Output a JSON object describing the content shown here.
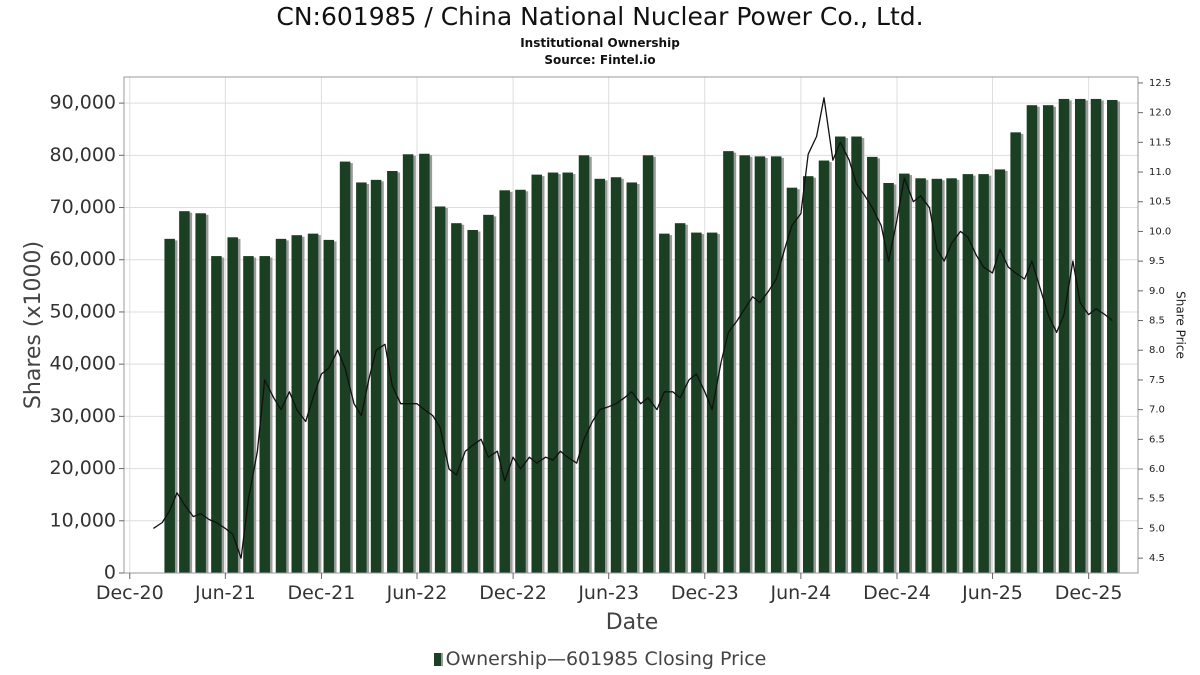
{
  "chart_data": {
    "type": "bar",
    "title": "CN:601985 / China National Nuclear Power Co., Ltd.",
    "subtitle": "Institutional Ownership",
    "source": "Source: Fintel.io",
    "xlabel": "Date",
    "ylabel": "Shares (x1000)",
    "y2label": "Share Price",
    "ylim": [
      0,
      95000
    ],
    "y2lim": [
      4.25,
      12.6
    ],
    "yticks": [
      "0",
      "10,000",
      "20,000",
      "30,000",
      "40,000",
      "50,000",
      "60,000",
      "70,000",
      "80,000",
      "90,000"
    ],
    "y2ticks": [
      "4.5",
      "5.0",
      "5.5",
      "6.0",
      "6.5",
      "7.0",
      "7.5",
      "8.0",
      "8.5",
      "9.0",
      "9.5",
      "10.0",
      "10.5",
      "11.0",
      "11.5",
      "12.0",
      "12.5"
    ],
    "xticks": [
      "Dec-20",
      "Jun-21",
      "Dec-21",
      "Jun-22",
      "Dec-22",
      "Jun-23",
      "Dec-23",
      "Jun-24",
      "Dec-24",
      "Jun-25",
      "Dec-25"
    ],
    "grid": true,
    "legend_position": "bottom",
    "series": [
      {
        "name": "Ownership",
        "kind": "bar",
        "color": "#1a3f23",
        "x": [
          "2021-02-15",
          "2021-03-15",
          "2021-04-15",
          "2021-05-15",
          "2021-06-15",
          "2021-07-15",
          "2021-08-15",
          "2021-09-15",
          "2021-10-15",
          "2021-11-15",
          "2021-12-15",
          "2022-01-15",
          "2022-02-15",
          "2022-03-15",
          "2022-04-15",
          "2022-05-15",
          "2022-06-15",
          "2022-07-15",
          "2022-08-15",
          "2022-09-15",
          "2022-10-15",
          "2022-11-15",
          "2022-12-15",
          "2023-01-15",
          "2023-02-15",
          "2023-03-15",
          "2023-04-15",
          "2023-05-15",
          "2023-06-15",
          "2023-07-15",
          "2023-08-15",
          "2023-09-15",
          "2023-10-15",
          "2023-11-15",
          "2023-12-15",
          "2024-01-15",
          "2024-02-15",
          "2024-03-15",
          "2024-04-15",
          "2024-05-15",
          "2024-06-15",
          "2024-07-15",
          "2024-08-15",
          "2024-09-15",
          "2024-10-15",
          "2024-11-15",
          "2024-12-15",
          "2025-01-15",
          "2025-02-15",
          "2025-03-15",
          "2025-04-15",
          "2025-05-15",
          "2025-06-15",
          "2025-07-15",
          "2025-08-15",
          "2025-09-15",
          "2025-10-15",
          "2025-11-15",
          "2025-12-15",
          "2026-01-15"
        ],
        "values": [
          64000,
          69300,
          68900,
          60700,
          64300,
          60700,
          60700,
          64000,
          64700,
          65000,
          63800,
          78800,
          74800,
          75300,
          77000,
          80200,
          80300,
          70200,
          67000,
          65700,
          68600,
          73300,
          73400,
          76300,
          76700,
          76700,
          80000,
          75500,
          75800,
          74800,
          80000,
          65000,
          67000,
          65200,
          65200,
          80800,
          80000,
          79800,
          79800,
          73800,
          76000,
          79000,
          83600,
          83600,
          79700,
          74700,
          76500,
          75600,
          75500,
          75600,
          76400,
          76400,
          77300,
          84400,
          89600,
          89600,
          90800,
          90800,
          90800,
          90600
        ]
      },
      {
        "name": "601985 Closing Price",
        "kind": "line",
        "color": "#111111",
        "x": [
          "2021-01-15",
          "2021-02-01",
          "2021-02-15",
          "2021-03-01",
          "2021-03-15",
          "2021-04-01",
          "2021-04-15",
          "2021-05-01",
          "2021-05-15",
          "2021-06-01",
          "2021-06-15",
          "2021-07-01",
          "2021-07-15",
          "2021-08-01",
          "2021-08-15",
          "2021-09-01",
          "2021-09-15",
          "2021-10-01",
          "2021-10-15",
          "2021-11-01",
          "2021-11-15",
          "2021-12-01",
          "2021-12-15",
          "2022-01-01",
          "2022-01-15",
          "2022-02-01",
          "2022-02-15",
          "2022-03-01",
          "2022-03-15",
          "2022-04-01",
          "2022-04-15",
          "2022-05-01",
          "2022-05-15",
          "2022-06-01",
          "2022-06-15",
          "2022-07-01",
          "2022-07-15",
          "2022-08-01",
          "2022-08-15",
          "2022-09-01",
          "2022-09-15",
          "2022-10-01",
          "2022-10-15",
          "2022-11-01",
          "2022-11-15",
          "2022-12-01",
          "2022-12-15",
          "2023-01-01",
          "2023-01-15",
          "2023-02-01",
          "2023-02-15",
          "2023-03-01",
          "2023-03-15",
          "2023-04-01",
          "2023-04-15",
          "2023-05-01",
          "2023-05-15",
          "2023-06-01",
          "2023-06-15",
          "2023-07-01",
          "2023-07-15",
          "2023-08-01",
          "2023-08-15",
          "2023-09-01",
          "2023-09-15",
          "2023-10-01",
          "2023-10-15",
          "2023-11-01",
          "2023-11-15",
          "2023-12-01",
          "2023-12-15",
          "2024-01-01",
          "2024-01-15",
          "2024-02-01",
          "2024-02-15",
          "2024-03-01",
          "2024-03-15",
          "2024-04-01",
          "2024-04-15",
          "2024-05-01",
          "2024-05-15",
          "2024-06-01",
          "2024-06-15",
          "2024-07-01",
          "2024-07-15",
          "2024-08-01",
          "2024-08-15",
          "2024-09-01",
          "2024-09-15",
          "2024-10-01",
          "2024-10-15",
          "2024-11-01",
          "2024-11-15",
          "2024-12-01",
          "2024-12-15",
          "2025-01-01",
          "2025-01-15",
          "2025-02-01",
          "2025-02-15",
          "2025-03-01",
          "2025-03-15",
          "2025-04-01",
          "2025-04-15",
          "2025-05-01",
          "2025-05-15",
          "2025-06-01",
          "2025-06-15",
          "2025-07-01",
          "2025-07-15",
          "2025-08-01",
          "2025-08-15",
          "2025-09-01",
          "2025-09-15",
          "2025-10-01",
          "2025-10-15",
          "2025-11-01",
          "2025-11-15",
          "2025-12-01",
          "2025-12-15",
          "2026-01-01",
          "2026-01-15"
        ],
        "values": [
          5.0,
          5.1,
          5.3,
          5.6,
          5.4,
          5.2,
          5.25,
          5.15,
          5.1,
          5.0,
          4.9,
          4.5,
          5.5,
          6.3,
          7.5,
          7.2,
          7.0,
          7.3,
          7.0,
          6.8,
          7.2,
          7.6,
          7.7,
          8.0,
          7.7,
          7.1,
          6.9,
          7.5,
          8.0,
          8.1,
          7.4,
          7.1,
          7.1,
          7.1,
          7.0,
          6.9,
          6.7,
          6.0,
          5.9,
          6.3,
          6.4,
          6.5,
          6.2,
          6.3,
          5.8,
          6.2,
          6.0,
          6.2,
          6.1,
          6.2,
          6.15,
          6.3,
          6.2,
          6.1,
          6.5,
          6.8,
          7.0,
          7.05,
          7.1,
          7.2,
          7.3,
          7.1,
          7.2,
          7.0,
          7.3,
          7.3,
          7.2,
          7.5,
          7.6,
          7.3,
          7.0,
          7.8,
          8.3,
          8.5,
          8.7,
          8.9,
          8.8,
          9.0,
          9.2,
          9.7,
          10.1,
          10.3,
          11.3,
          11.6,
          12.25,
          11.2,
          11.5,
          11.2,
          10.8,
          10.6,
          10.4,
          10.1,
          9.5,
          10.2,
          10.9,
          10.5,
          10.6,
          10.4,
          9.7,
          9.5,
          9.8,
          10.0,
          9.9,
          9.6,
          9.4,
          9.3,
          9.7,
          9.4,
          9.3,
          9.2,
          9.5,
          9.0,
          8.6,
          8.3,
          8.6,
          9.5,
          8.8,
          8.6,
          8.7,
          8.6,
          8.5
        ]
      }
    ]
  },
  "legend": {
    "bar_label": "Ownership",
    "separator": "—",
    "line_label": "601985 Closing Price"
  }
}
